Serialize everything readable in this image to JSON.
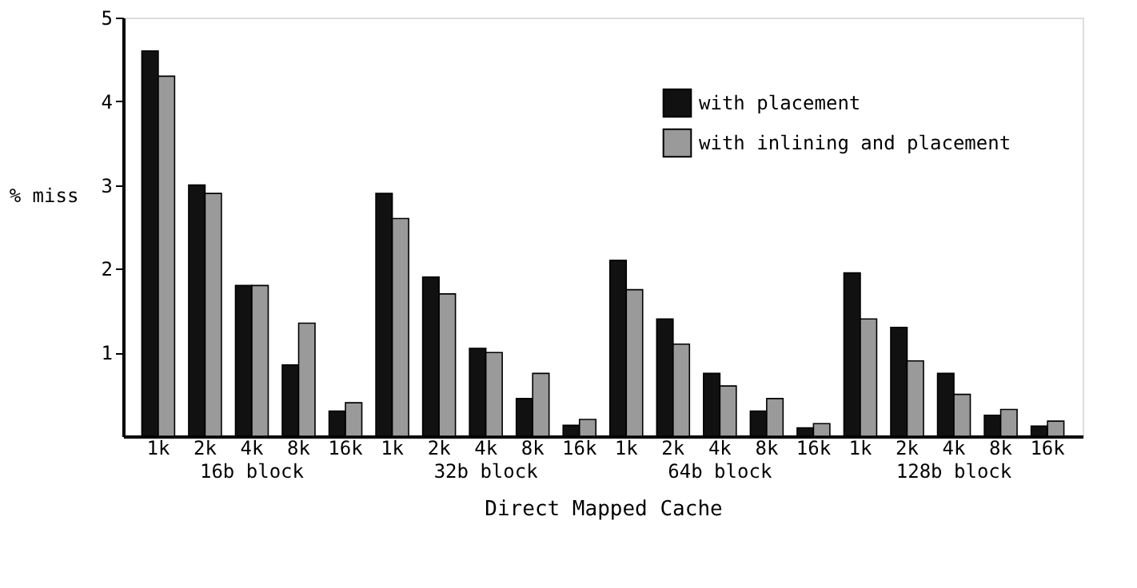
{
  "chart_data": {
    "type": "bar",
    "xlabel": "Direct Mapped Cache",
    "ylabel": "% miss",
    "categories": [
      "1k",
      "2k",
      "4k",
      "8k",
      "16k",
      "1k",
      "2k",
      "4k",
      "8k",
      "16k",
      "1k",
      "2k",
      "4k",
      "8k",
      "16k",
      "1k",
      "2k",
      "4k",
      "8k",
      "16k"
    ],
    "series": [
      {
        "name": "with placement",
        "color": "#111111",
        "values": [
          4.6,
          3.0,
          1.8,
          0.85,
          0.3,
          2.9,
          1.9,
          1.05,
          0.45,
          0.13,
          2.1,
          1.4,
          0.75,
          0.3,
          0.1,
          1.95,
          1.3,
          0.75,
          0.25,
          0.12
        ]
      },
      {
        "name": "with inlining and placement",
        "color": "#9a9a9a",
        "values": [
          4.3,
          2.9,
          1.8,
          1.35,
          0.4,
          2.6,
          1.7,
          1.0,
          0.75,
          0.2,
          1.75,
          1.1,
          0.6,
          0.45,
          0.15,
          1.4,
          0.9,
          0.5,
          0.32,
          0.18
        ]
      }
    ],
    "annotations": [
      "16b block",
      "32b block",
      "64b block",
      "128b block"
    ],
    "ylim": [
      0,
      5
    ],
    "yticks": [
      1,
      2,
      3,
      4,
      5
    ],
    "grid": false,
    "legend": "top right"
  }
}
